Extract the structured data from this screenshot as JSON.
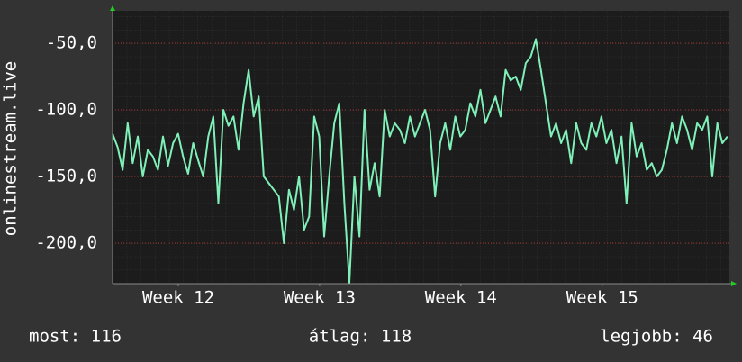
{
  "chart_data": {
    "type": "line",
    "y_label": "onlinestream.live",
    "x": [
      0,
      0.25,
      0.5,
      0.75,
      1,
      1.25,
      1.5,
      1.75,
      2,
      2.25,
      2.5,
      2.75,
      3,
      3.25,
      3.5,
      3.75,
      4,
      4.25,
      4.5,
      4.75,
      5,
      5.25,
      5.5,
      5.75,
      6,
      6.25,
      6.5,
      6.75,
      7,
      7.25,
      7.5,
      7.75,
      8,
      8.25,
      8.5,
      8.75,
      9,
      9.25,
      9.5,
      9.75,
      10,
      10.25,
      10.5,
      10.75,
      11,
      11.25,
      11.5,
      11.75,
      12,
      12.25,
      12.5,
      12.75,
      13,
      13.25,
      13.5,
      13.75,
      14,
      14.25,
      14.5,
      14.75,
      15,
      15.25,
      15.5,
      15.75,
      16,
      16.25,
      16.5,
      16.75,
      17,
      17.25,
      17.5,
      17.75,
      18,
      18.25,
      18.5,
      18.75,
      19,
      19.25,
      19.5,
      19.75,
      20,
      20.25,
      20.5,
      20.75,
      21,
      21.25,
      21.5,
      21.75,
      22,
      22.25,
      22.5,
      22.75,
      23,
      23.25,
      23.5,
      23.75,
      24,
      24.25,
      24.5,
      24.75,
      25,
      25.25,
      25.5,
      25.75,
      26,
      26.25,
      26.5,
      26.75,
      27,
      27.25,
      27.5,
      27.75,
      28,
      28.25,
      28.5,
      28.75,
      29,
      29.25,
      29.5,
      29.75,
      30,
      30.25,
      30.5
    ],
    "series": [
      {
        "name": "onlinestream.live",
        "color": "#7ff0b8",
        "values": [
          -118,
          -128,
          -145,
          -110,
          -140,
          -120,
          -150,
          -130,
          -135,
          -145,
          -120,
          -142,
          -125,
          -118,
          -135,
          -148,
          -125,
          -138,
          -150,
          -120,
          -105,
          -170,
          -100,
          -112,
          -105,
          -130,
          -95,
          -70,
          -105,
          -90,
          -150,
          -155,
          -160,
          -165,
          -200,
          -160,
          -175,
          -150,
          -190,
          -180,
          -105,
          -120,
          -195,
          -150,
          -110,
          -95,
          -170,
          -230,
          -150,
          -195,
          -100,
          -160,
          -140,
          -165,
          -100,
          -120,
          -110,
          -115,
          -125,
          -105,
          -120,
          -110,
          -100,
          -115,
          -165,
          -125,
          -110,
          -130,
          -105,
          -120,
          -115,
          -95,
          -105,
          -85,
          -110,
          -100,
          -90,
          -105,
          -70,
          -78,
          -75,
          -85,
          -65,
          -60,
          -47,
          -70,
          -95,
          -120,
          -110,
          -125,
          -115,
          -140,
          -110,
          -125,
          -130,
          -110,
          -120,
          -105,
          -125,
          -115,
          -140,
          -120,
          -170,
          -110,
          -135,
          -125,
          -145,
          -140,
          -150,
          -145,
          -130,
          -110,
          -125,
          -105,
          -115,
          -130,
          -110,
          -115,
          -105,
          -150,
          -110,
          -125,
          -120
        ]
      }
    ],
    "xlim": [
      0,
      30.6
    ],
    "xticks": [
      {
        "value": 3.26,
        "label": "Week 12"
      },
      {
        "value": 10.27,
        "label": "Week 13"
      },
      {
        "value": 17.28,
        "label": "Week 14"
      },
      {
        "value": 24.29,
        "label": "Week 15"
      }
    ],
    "ylim": [
      -230.4,
      -25.7
    ],
    "yticks": [
      {
        "value": -50,
        "label": "-50,0"
      },
      {
        "value": -100,
        "label": "-100,0"
      },
      {
        "value": -150,
        "label": "-150,0"
      },
      {
        "value": -200,
        "label": "-200,0"
      }
    ],
    "grid": true,
    "annotations": [
      "most: 116",
      "átlag: 118",
      "legjobb: 46"
    ]
  }
}
